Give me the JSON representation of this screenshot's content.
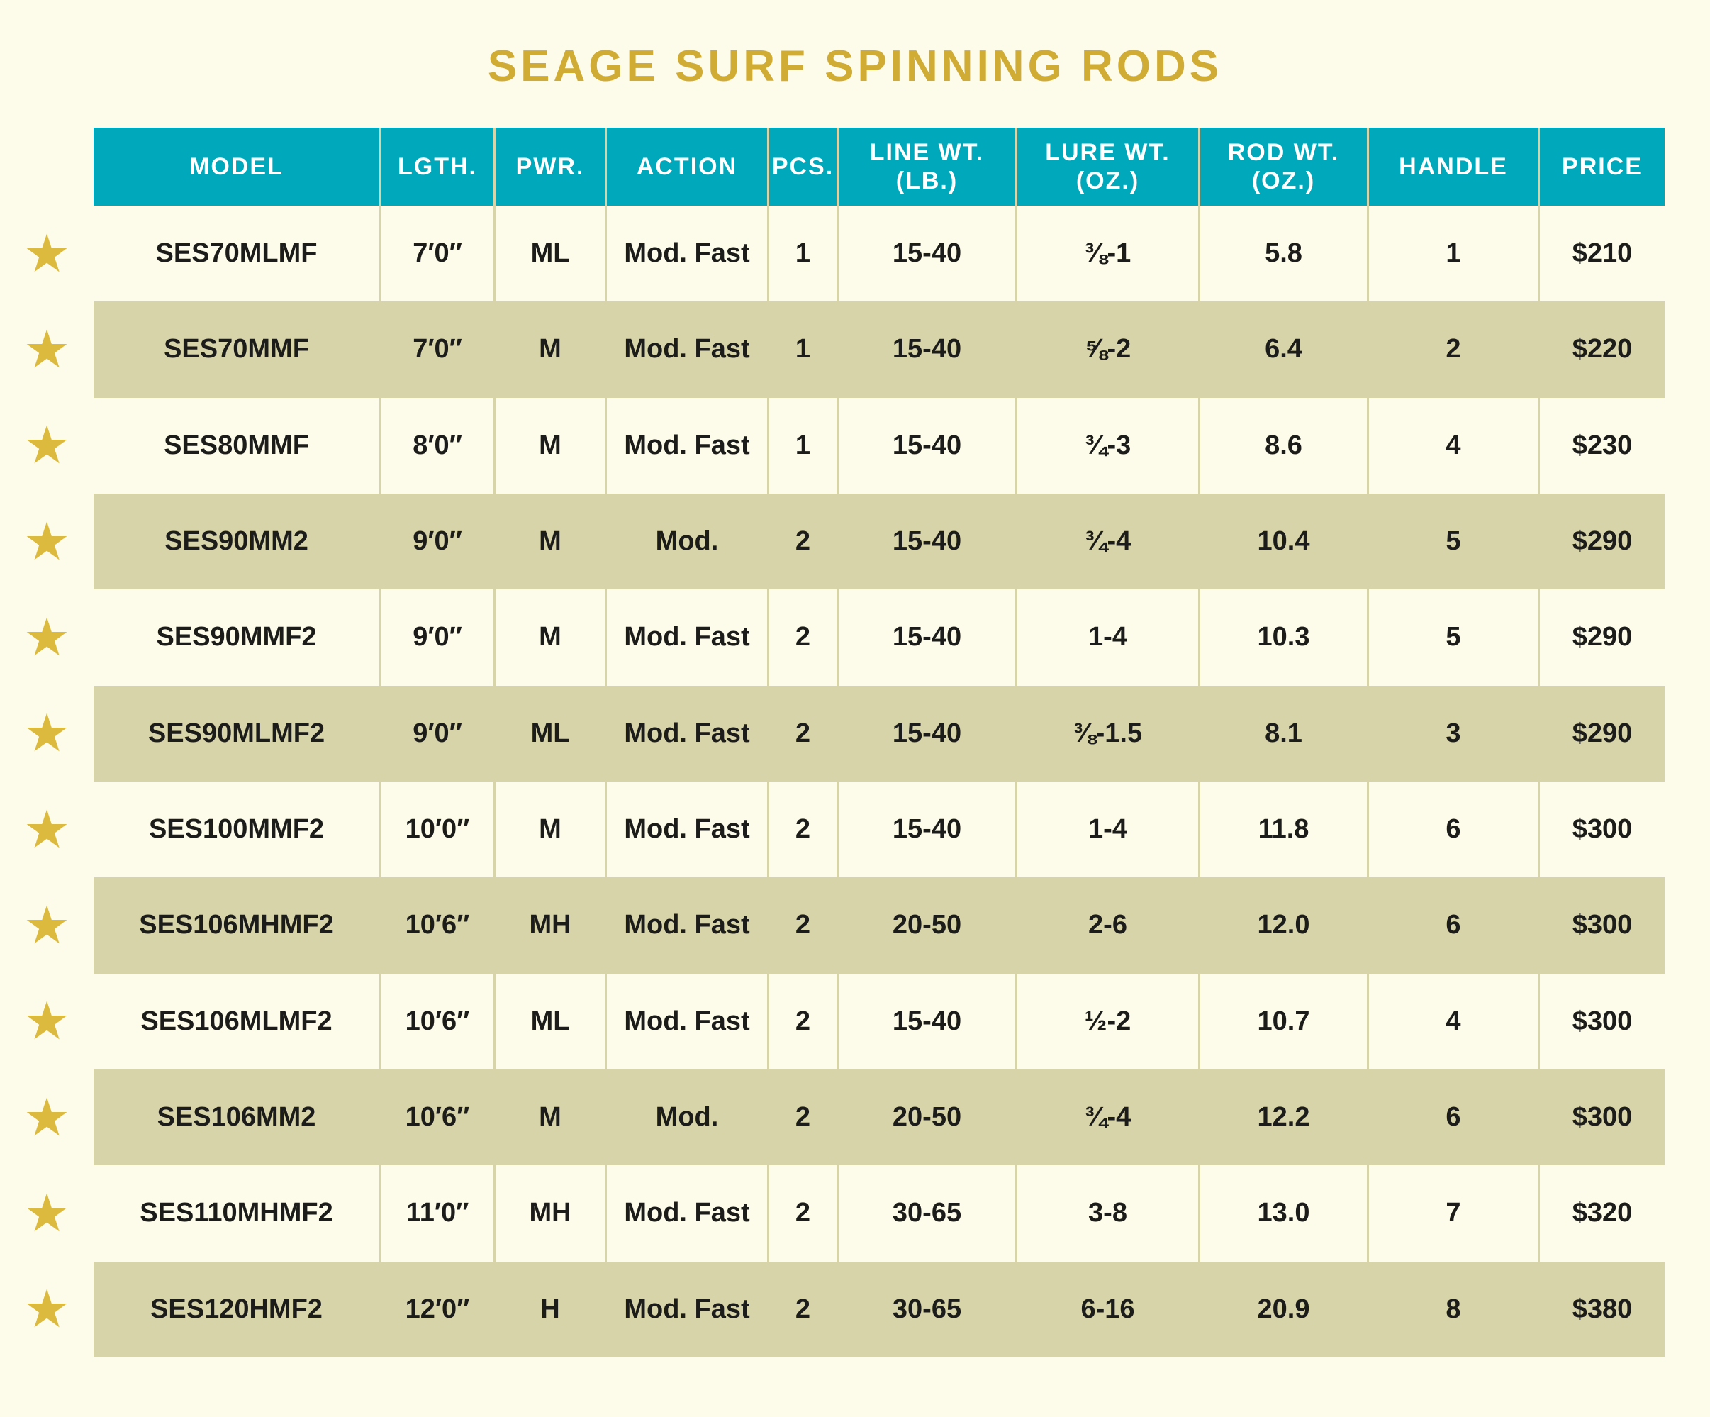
{
  "title": "SEAGE SURF SPINNING RODS",
  "icons": {
    "star": "★"
  },
  "colors": {
    "background": "#FDFBE9",
    "header_bg": "#00A8BC",
    "header_text": "#FFFFFF",
    "row_stripe": "#D8D4AA",
    "title_gold": "#D0AC35",
    "star_gold": "#DCBA3E",
    "cell_text": "#1C1C1A"
  },
  "table": {
    "column_keys": [
      "model",
      "length",
      "power",
      "action",
      "pieces",
      "line-weight",
      "lure-weight",
      "rod-weight",
      "handle",
      "price"
    ],
    "columns": [
      {
        "label": "MODEL",
        "sub": ""
      },
      {
        "label": "LGTH.",
        "sub": ""
      },
      {
        "label": "PWR.",
        "sub": ""
      },
      {
        "label": "ACTION",
        "sub": ""
      },
      {
        "label": "PCS.",
        "sub": ""
      },
      {
        "label": "LINE WT.",
        "sub": "(LB.)"
      },
      {
        "label": "LURE WT.",
        "sub": "(OZ.)"
      },
      {
        "label": "ROD WT.",
        "sub": "(OZ.)"
      },
      {
        "label": "HANDLE",
        "sub": ""
      },
      {
        "label": "PRICE",
        "sub": ""
      }
    ],
    "rows": [
      {
        "featured": true,
        "cells": [
          "SES70MLMF",
          "7′0″",
          "ML",
          "Mod. Fast",
          "1",
          "15-40",
          "⅜-1",
          "5.8",
          "1",
          "$210"
        ]
      },
      {
        "featured": true,
        "cells": [
          "SES70MMF",
          "7′0″",
          "M",
          "Mod. Fast",
          "1",
          "15-40",
          "⅝-2",
          "6.4",
          "2",
          "$220"
        ]
      },
      {
        "featured": true,
        "cells": [
          "SES80MMF",
          "8′0″",
          "M",
          "Mod. Fast",
          "1",
          "15-40",
          "¾-3",
          "8.6",
          "4",
          "$230"
        ]
      },
      {
        "featured": true,
        "cells": [
          "SES90MM2",
          "9′0″",
          "M",
          "Mod.",
          "2",
          "15-40",
          "¾-4",
          "10.4",
          "5",
          "$290"
        ]
      },
      {
        "featured": true,
        "cells": [
          "SES90MMF2",
          "9′0″",
          "M",
          "Mod. Fast",
          "2",
          "15-40",
          "1-4",
          "10.3",
          "5",
          "$290"
        ]
      },
      {
        "featured": true,
        "cells": [
          "SES90MLMF2",
          "9′0″",
          "ML",
          "Mod. Fast",
          "2",
          "15-40",
          "⅜-1.5",
          "8.1",
          "3",
          "$290"
        ]
      },
      {
        "featured": true,
        "cells": [
          "SES100MMF2",
          "10′0″",
          "M",
          "Mod. Fast",
          "2",
          "15-40",
          "1-4",
          "11.8",
          "6",
          "$300"
        ]
      },
      {
        "featured": true,
        "cells": [
          "SES106MHMF2",
          "10′6″",
          "MH",
          "Mod. Fast",
          "2",
          "20-50",
          "2-6",
          "12.0",
          "6",
          "$300"
        ]
      },
      {
        "featured": true,
        "cells": [
          "SES106MLMF2",
          "10′6″",
          "ML",
          "Mod. Fast",
          "2",
          "15-40",
          "½-2",
          "10.7",
          "4",
          "$300"
        ]
      },
      {
        "featured": true,
        "cells": [
          "SES106MM2",
          "10′6″",
          "M",
          "Mod.",
          "2",
          "20-50",
          "¾-4",
          "12.2",
          "6",
          "$300"
        ]
      },
      {
        "featured": true,
        "cells": [
          "SES110MHMF2",
          "11′0″",
          "MH",
          "Mod. Fast",
          "2",
          "30-65",
          "3-8",
          "13.0",
          "7",
          "$320"
        ]
      },
      {
        "featured": true,
        "cells": [
          "SES120HMF2",
          "12′0″",
          "H",
          "Mod. Fast",
          "2",
          "30-65",
          "6-16",
          "20.9",
          "8",
          "$380"
        ]
      }
    ]
  }
}
